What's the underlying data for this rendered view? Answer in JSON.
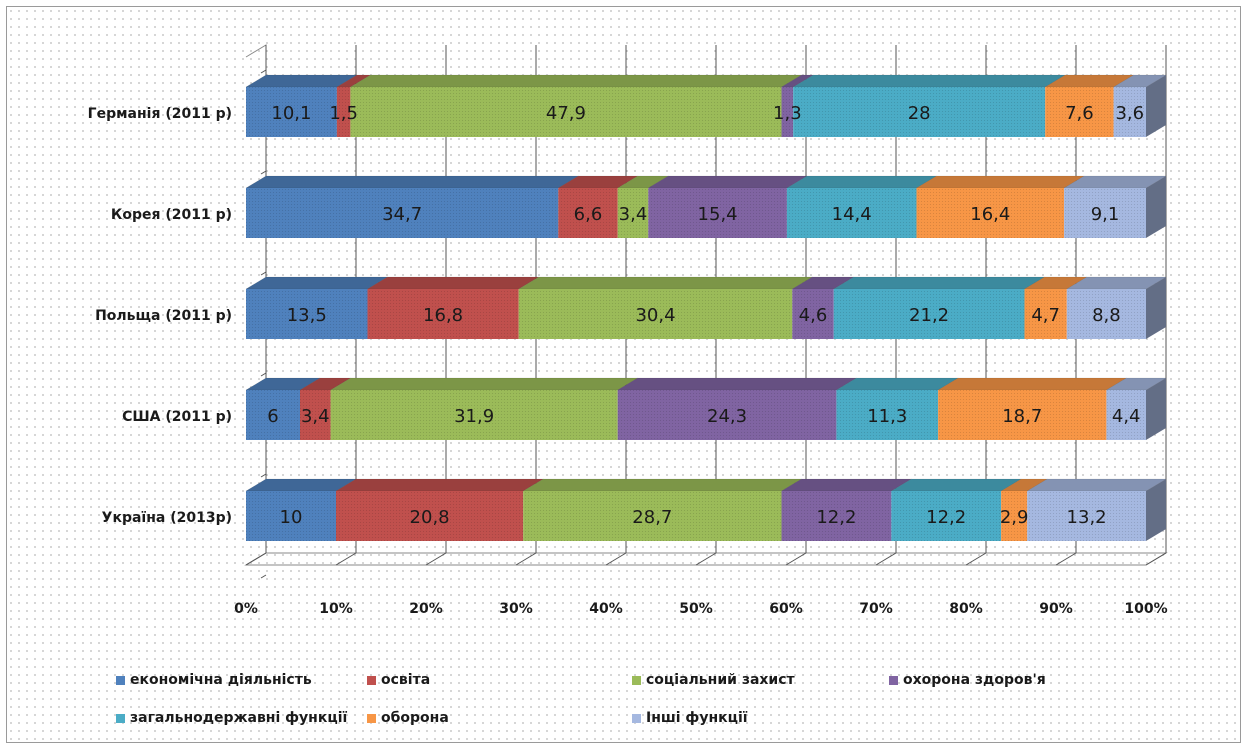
{
  "chart_data": {
    "type": "bar",
    "orientation": "horizontal",
    "stacked": "percent",
    "three_d": true,
    "categories": [
      "Германія (2011 р)",
      "Корея (2011 р)",
      "Польща (2011 р)",
      "США (2011 р)",
      "Україна (2013р)"
    ],
    "series": [
      {
        "name": "економічна діяльність",
        "color": "#4F81BD",
        "values": [
          10.1,
          34.7,
          13.5,
          6,
          10
        ],
        "labels": [
          "10,1",
          "34,7",
          "13,5",
          "6",
          "10"
        ]
      },
      {
        "name": "освіта",
        "color": "#C0504D",
        "values": [
          1.5,
          6.6,
          16.8,
          3.4,
          20.8
        ],
        "labels": [
          "1,5",
          "6,6",
          "16,8",
          "3,4",
          "20,8"
        ]
      },
      {
        "name": "соціальний захист",
        "color": "#9BBB59",
        "values": [
          47.9,
          3.4,
          30.4,
          31.9,
          28.7
        ],
        "labels": [
          "47,9",
          "3,4",
          "30,4",
          "31,9",
          "28,7"
        ]
      },
      {
        "name": "охорона здоров'я",
        "color": "#8064A2",
        "values": [
          1.3,
          15.4,
          4.6,
          24.3,
          12.2
        ],
        "labels": [
          "1,3",
          "15,4",
          "4,6",
          "24,3",
          "12,2"
        ]
      },
      {
        "name": "загальнодержавні функції",
        "color": "#4BACC6",
        "values": [
          28,
          14.4,
          21.2,
          11.3,
          12.2
        ],
        "labels": [
          "28",
          "14,4",
          "21,2",
          "11,3",
          "12,2"
        ]
      },
      {
        "name": "оборона",
        "color": "#F79646",
        "values": [
          7.6,
          16.4,
          4.7,
          18.7,
          2.9
        ],
        "labels": [
          "7,6",
          "16,4",
          "4,7",
          "18,7",
          "2,9"
        ]
      },
      {
        "name": "Інші функції",
        "color": "#A5B8E0",
        "values": [
          3.6,
          9.1,
          8.8,
          4.4,
          13.2
        ],
        "labels": [
          "3,6",
          "9,1",
          "8,8",
          "4,4",
          "13,2"
        ]
      }
    ],
    "x_ticks": [
      "0%",
      "10%",
      "20%",
      "30%",
      "40%",
      "50%",
      "60%",
      "70%",
      "80%",
      "90%",
      "100%"
    ],
    "xlim": [
      0,
      100
    ],
    "grid": true,
    "legend_position": "bottom"
  }
}
